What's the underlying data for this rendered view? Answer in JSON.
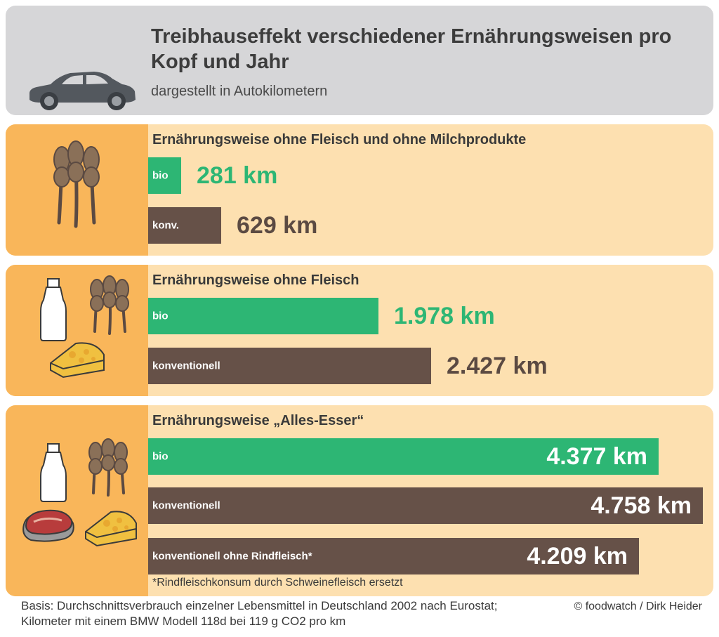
{
  "title": "Treibhauseffekt verschiedener Ernährungsweisen pro Kopf und Jahr",
  "subtitle": "dargestellt in Autokilometern",
  "icons": {
    "car": "car-icon",
    "wheat": "wheat-icon",
    "milk": "milk-bottle-icon",
    "cheese": "cheese-icon",
    "meat": "steak-icon"
  },
  "colors": {
    "bio": "#2db674",
    "konventionell": "#665148",
    "panel": "#fde0b0",
    "icon_column": "#f9b65a",
    "header": "#d6d6d8"
  },
  "chart_data": {
    "type": "bar",
    "orientation": "horizontal",
    "title": "Treibhauseffekt verschiedener Ernährungsweisen pro Kopf und Jahr",
    "subtitle": "dargestellt in Autokilometern",
    "unit": "km",
    "xlim": [
      0,
      4758
    ],
    "groups": [
      {
        "title": "Ernährungsweise ohne Fleisch und ohne Milchprodukte",
        "bars": [
          {
            "label": "bio",
            "value": 281,
            "display": "281 km",
            "type": "bio"
          },
          {
            "label": "konv.",
            "value": 629,
            "display": "629 km",
            "type": "konv"
          }
        ]
      },
      {
        "title": "Ernährungsweise ohne Fleisch",
        "bars": [
          {
            "label": "bio",
            "value": 1978,
            "display": "1.978 km",
            "type": "bio"
          },
          {
            "label": "konventionell",
            "value": 2427,
            "display": "2.427 km",
            "type": "konv"
          }
        ]
      },
      {
        "title": "Ernährungsweise „Alles-Esser“",
        "bars": [
          {
            "label": "bio",
            "value": 4377,
            "display": "4.377 km",
            "type": "bio"
          },
          {
            "label": "konventionell",
            "value": 4758,
            "display": "4.758 km",
            "type": "konv"
          },
          {
            "label": "konventionell ohne Rindfleisch*",
            "value": 4209,
            "display": "4.209 km",
            "type": "konv"
          }
        ],
        "footnote": "*Rindfleischkonsum durch Schweinefleisch ersetzt"
      }
    ]
  },
  "footer": {
    "basis_line1": "Basis: Durchschnittsverbrauch einzelner Lebensmittel in Deutschland 2002 nach Eurostat;",
    "basis_line2": "Kilometer mit einem BMW Modell 118d bei 119 g CO2 pro km",
    "credit": "© foodwatch / Dirk Heider"
  }
}
